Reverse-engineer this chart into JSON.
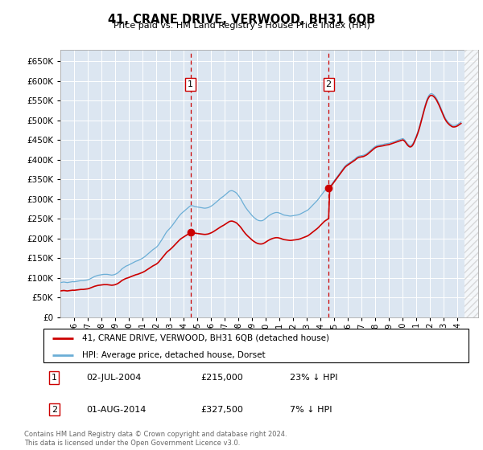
{
  "title": "41, CRANE DRIVE, VERWOOD, BH31 6QB",
  "subtitle": "Price paid vs. HM Land Registry's House Price Index (HPI)",
  "legend_line1": "41, CRANE DRIVE, VERWOOD, BH31 6QB (detached house)",
  "legend_line2": "HPI: Average price, detached house, Dorset",
  "footnote": "Contains HM Land Registry data © Crown copyright and database right 2024.\nThis data is licensed under the Open Government Licence v3.0.",
  "annotation1": {
    "label": "1",
    "date": "02-JUL-2004",
    "price": "£215,000",
    "hpi": "23% ↓ HPI",
    "x_year": 2004.5
  },
  "annotation2": {
    "label": "2",
    "date": "01-AUG-2014",
    "price": "£327,500",
    "hpi": "7% ↓ HPI",
    "x_year": 2014.58
  },
  "hpi_color": "#6baed6",
  "price_color": "#cc0000",
  "background_color": "#dce6f1",
  "ylim": [
    0,
    680000
  ],
  "yticks": [
    0,
    50000,
    100000,
    150000,
    200000,
    250000,
    300000,
    350000,
    400000,
    450000,
    500000,
    550000,
    600000,
    650000
  ],
  "xlim_start": 1995.0,
  "xlim_end": 2025.5,
  "hpi_monthly": {
    "years": [
      1995.0,
      1995.083,
      1995.167,
      1995.25,
      1995.333,
      1995.417,
      1995.5,
      1995.583,
      1995.667,
      1995.75,
      1995.833,
      1995.917,
      1996.0,
      1996.083,
      1996.167,
      1996.25,
      1996.333,
      1996.417,
      1996.5,
      1996.583,
      1996.667,
      1996.75,
      1996.833,
      1996.917,
      1997.0,
      1997.083,
      1997.167,
      1997.25,
      1997.333,
      1997.417,
      1997.5,
      1997.583,
      1997.667,
      1997.75,
      1997.833,
      1997.917,
      1998.0,
      1998.083,
      1998.167,
      1998.25,
      1998.333,
      1998.417,
      1998.5,
      1998.583,
      1998.667,
      1998.75,
      1998.833,
      1998.917,
      1999.0,
      1999.083,
      1999.167,
      1999.25,
      1999.333,
      1999.417,
      1999.5,
      1999.583,
      1999.667,
      1999.75,
      1999.833,
      1999.917,
      2000.0,
      2000.083,
      2000.167,
      2000.25,
      2000.333,
      2000.417,
      2000.5,
      2000.583,
      2000.667,
      2000.75,
      2000.833,
      2000.917,
      2001.0,
      2001.083,
      2001.167,
      2001.25,
      2001.333,
      2001.417,
      2001.5,
      2001.583,
      2001.667,
      2001.75,
      2001.833,
      2001.917,
      2002.0,
      2002.083,
      2002.167,
      2002.25,
      2002.333,
      2002.417,
      2002.5,
      2002.583,
      2002.667,
      2002.75,
      2002.833,
      2002.917,
      2003.0,
      2003.083,
      2003.167,
      2003.25,
      2003.333,
      2003.417,
      2003.5,
      2003.583,
      2003.667,
      2003.75,
      2003.833,
      2003.917,
      2004.0,
      2004.083,
      2004.167,
      2004.25,
      2004.333,
      2004.417,
      2004.5,
      2004.583,
      2004.667,
      2004.75,
      2004.833,
      2004.917,
      2005.0,
      2005.083,
      2005.167,
      2005.25,
      2005.333,
      2005.417,
      2005.5,
      2005.583,
      2005.667,
      2005.75,
      2005.833,
      2005.917,
      2006.0,
      2006.083,
      2006.167,
      2006.25,
      2006.333,
      2006.417,
      2006.5,
      2006.583,
      2006.667,
      2006.75,
      2006.833,
      2006.917,
      2007.0,
      2007.083,
      2007.167,
      2007.25,
      2007.333,
      2007.417,
      2007.5,
      2007.583,
      2007.667,
      2007.75,
      2007.833,
      2007.917,
      2008.0,
      2008.083,
      2008.167,
      2008.25,
      2008.333,
      2008.417,
      2008.5,
      2008.583,
      2008.667,
      2008.75,
      2008.833,
      2008.917,
      2009.0,
      2009.083,
      2009.167,
      2009.25,
      2009.333,
      2009.417,
      2009.5,
      2009.583,
      2009.667,
      2009.75,
      2009.833,
      2009.917,
      2010.0,
      2010.083,
      2010.167,
      2010.25,
      2010.333,
      2010.417,
      2010.5,
      2010.583,
      2010.667,
      2010.75,
      2010.833,
      2010.917,
      2011.0,
      2011.083,
      2011.167,
      2011.25,
      2011.333,
      2011.417,
      2011.5,
      2011.583,
      2011.667,
      2011.75,
      2011.833,
      2011.917,
      2012.0,
      2012.083,
      2012.167,
      2012.25,
      2012.333,
      2012.417,
      2012.5,
      2012.583,
      2012.667,
      2012.75,
      2012.833,
      2012.917,
      2013.0,
      2013.083,
      2013.167,
      2013.25,
      2013.333,
      2013.417,
      2013.5,
      2013.583,
      2013.667,
      2013.75,
      2013.833,
      2013.917,
      2014.0,
      2014.083,
      2014.167,
      2014.25,
      2014.333,
      2014.417,
      2014.5,
      2014.583,
      2014.667,
      2014.75,
      2014.833,
      2014.917,
      2015.0,
      2015.083,
      2015.167,
      2015.25,
      2015.333,
      2015.417,
      2015.5,
      2015.583,
      2015.667,
      2015.75,
      2015.833,
      2015.917,
      2016.0,
      2016.083,
      2016.167,
      2016.25,
      2016.333,
      2016.417,
      2016.5,
      2016.583,
      2016.667,
      2016.75,
      2016.833,
      2016.917,
      2017.0,
      2017.083,
      2017.167,
      2017.25,
      2017.333,
      2017.417,
      2017.5,
      2017.583,
      2017.667,
      2017.75,
      2017.833,
      2017.917,
      2018.0,
      2018.083,
      2018.167,
      2018.25,
      2018.333,
      2018.417,
      2018.5,
      2018.583,
      2018.667,
      2018.75,
      2018.833,
      2018.917,
      2019.0,
      2019.083,
      2019.167,
      2019.25,
      2019.333,
      2019.417,
      2019.5,
      2019.583,
      2019.667,
      2019.75,
      2019.833,
      2019.917,
      2020.0,
      2020.083,
      2020.167,
      2020.25,
      2020.333,
      2020.417,
      2020.5,
      2020.583,
      2020.667,
      2020.75,
      2020.833,
      2020.917,
      2021.0,
      2021.083,
      2021.167,
      2021.25,
      2021.333,
      2021.417,
      2021.5,
      2021.583,
      2021.667,
      2021.75,
      2021.833,
      2021.917,
      2022.0,
      2022.083,
      2022.167,
      2022.25,
      2022.333,
      2022.417,
      2022.5,
      2022.583,
      2022.667,
      2022.75,
      2022.833,
      2022.917,
      2023.0,
      2023.083,
      2023.167,
      2023.25,
      2023.333,
      2023.417,
      2023.5,
      2023.583,
      2023.667,
      2023.75,
      2023.833,
      2023.917,
      2024.0,
      2024.083,
      2024.167,
      2024.25
    ],
    "values": [
      88000,
      88500,
      89000,
      89500,
      89000,
      88500,
      88000,
      88500,
      89000,
      89500,
      90000,
      90500,
      90000,
      90500,
      91000,
      91500,
      92000,
      92500,
      93000,
      93000,
      93000,
      93500,
      94000,
      94500,
      95000,
      96000,
      97500,
      99000,
      100500,
      102000,
      103500,
      104500,
      105500,
      106500,
      107000,
      107500,
      108000,
      108500,
      109000,
      109000,
      109000,
      109000,
      108500,
      108000,
      107500,
      107000,
      107500,
      108000,
      109000,
      110500,
      112000,
      114500,
      117000,
      120000,
      123000,
      125000,
      127000,
      129000,
      130500,
      131500,
      133000,
      134500,
      136000,
      137500,
      139000,
      140500,
      142000,
      143000,
      144000,
      145500,
      147000,
      148500,
      150000,
      152000,
      154000,
      156500,
      159000,
      161500,
      164000,
      166500,
      169000,
      171500,
      173500,
      175500,
      177500,
      180500,
      184000,
      188500,
      193000,
      197500,
      202000,
      207000,
      212000,
      216500,
      220000,
      223000,
      226000,
      229500,
      233000,
      237000,
      241000,
      245000,
      249000,
      253000,
      257000,
      260500,
      263500,
      266000,
      268500,
      271000,
      273500,
      276000,
      278500,
      281000,
      283000,
      283500,
      283000,
      282000,
      281000,
      280500,
      280000,
      279500,
      279000,
      278500,
      278000,
      277500,
      277000,
      277000,
      277500,
      278000,
      279000,
      280500,
      282000,
      284000,
      286000,
      288500,
      291000,
      293500,
      296000,
      298500,
      301000,
      303500,
      305500,
      307500,
      310000,
      312500,
      315000,
      317500,
      320000,
      321000,
      321500,
      321000,
      319500,
      318000,
      316000,
      313000,
      309000,
      305000,
      300500,
      295500,
      290000,
      285000,
      280000,
      276000,
      272000,
      268500,
      265000,
      261500,
      258000,
      255000,
      252500,
      250000,
      248000,
      246500,
      245500,
      245000,
      245000,
      245500,
      247000,
      249000,
      251500,
      254000,
      256500,
      258500,
      260500,
      262000,
      263500,
      264500,
      265500,
      266000,
      266000,
      265500,
      264500,
      263500,
      262000,
      260500,
      259500,
      259000,
      258500,
      258000,
      257500,
      257000,
      257000,
      257500,
      258000,
      258500,
      259000,
      259500,
      260000,
      261000,
      262000,
      263500,
      265000,
      266500,
      268000,
      269500,
      271000,
      273000,
      275500,
      278500,
      281500,
      284500,
      287500,
      290500,
      293500,
      296500,
      300000,
      304000,
      308000,
      312000,
      316000,
      319500,
      322500,
      325000,
      327500,
      330000,
      332500,
      335500,
      339000,
      343000,
      347000,
      351000,
      355000,
      359000,
      363000,
      367000,
      371000,
      375000,
      379000,
      382500,
      385500,
      388000,
      390000,
      392000,
      394000,
      396000,
      398000,
      400000,
      402000,
      404500,
      407000,
      408500,
      409500,
      410000,
      410500,
      411000,
      412000,
      413500,
      415000,
      417000,
      419500,
      422000,
      424500,
      427000,
      429500,
      432000,
      434000,
      435500,
      436500,
      437000,
      437500,
      438000,
      438500,
      439000,
      440000,
      440500,
      441000,
      441500,
      442000,
      443000,
      444000,
      445000,
      446000,
      447000,
      448000,
      449000,
      450000,
      451000,
      452000,
      453000,
      454000,
      452000,
      449000,
      445000,
      441000,
      438000,
      436000,
      436000,
      438000,
      442000,
      448000,
      455000,
      462000,
      470000,
      479000,
      489000,
      500000,
      511000,
      522000,
      533000,
      543000,
      552000,
      559000,
      564000,
      567000,
      568000,
      567000,
      565000,
      562000,
      558000,
      553000,
      547000,
      541000,
      534000,
      527000,
      520000,
      513000,
      507000,
      502000,
      498000,
      495000,
      492000,
      490000,
      488000,
      487000,
      487000,
      487500,
      488500,
      490000,
      492000,
      494000,
      496000
    ]
  },
  "purchase1_year": 2004.5,
  "purchase1_price": 215000,
  "purchase2_year": 2014.583,
  "purchase2_price": 327500
}
